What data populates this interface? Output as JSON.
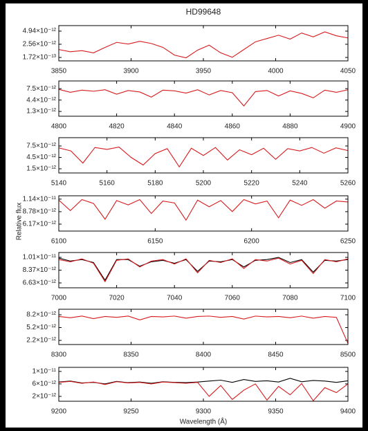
{
  "chart_data": [
    {
      "type": "line",
      "title": "HD99648",
      "x": [
        3850,
        3858,
        3866,
        3874,
        3882,
        3890,
        3898,
        3906,
        3914,
        3922,
        3930,
        3938,
        3946,
        3954,
        3962,
        3970,
        3978,
        3986,
        3994,
        4002,
        4010,
        4018,
        4026,
        4034,
        4042,
        4050
      ],
      "series": [
        {
          "color": "#d7191c",
          "values": [
            1.6e-12,
            1.2e-12,
            1.4e-12,
            1e-12,
            2e-12,
            2.9e-12,
            2.6e-12,
            3.1e-12,
            2.7e-12,
            2e-12,
            6e-13,
            1e-13,
            1.5e-12,
            2.4e-12,
            1e-12,
            2e-13,
            1.6e-12,
            3e-12,
            3.6e-12,
            4.2e-12,
            3.5e-12,
            4.6e-12,
            3.9e-12,
            4.8e-12,
            4.1e-12,
            3.7e-12
          ]
        }
      ],
      "xlim": [
        3850,
        4050
      ],
      "xticks": [
        3850,
        3900,
        3950,
        4000,
        4050
      ],
      "ylim": [
        -4.5e-13,
        5.94e-12
      ],
      "yticks": [
        {
          "value": 1.72e-13,
          "label": "1.72×10⁻¹³"
        },
        {
          "value": 2.56e-12,
          "label": "2.56×10⁻¹²"
        },
        {
          "value": 4.94e-12,
          "label": "4.94×10⁻¹²"
        }
      ]
    },
    {
      "type": "line",
      "x": [
        4800,
        4804,
        4808,
        4812,
        4816,
        4820,
        4824,
        4828,
        4832,
        4836,
        4840,
        4844,
        4848,
        4852,
        4856,
        4860,
        4864,
        4868,
        4872,
        4876,
        4880,
        4884,
        4888,
        4892,
        4896,
        4900
      ],
      "series": [
        {
          "color": "#d7191c",
          "values": [
            7.3e-12,
            6.5e-12,
            7.1e-12,
            6.8e-12,
            7.2e-12,
            6e-12,
            7e-12,
            6.6e-12,
            5.2e-12,
            7.1e-12,
            6.9e-12,
            6.3e-12,
            7.2e-12,
            5.8e-12,
            7e-12,
            6.4e-12,
            2.8e-12,
            6.7e-12,
            7e-12,
            5.5e-12,
            6.9e-12,
            6.2e-12,
            5e-12,
            7.1e-12,
            6.5e-12,
            7.2e-12
          ]
        }
      ],
      "xlim": [
        4800,
        4900
      ],
      "xticks": [
        4800,
        4820,
        4840,
        4860,
        4880,
        4900
      ],
      "ylim": [
        0,
        9.6e-12
      ],
      "yticks": [
        {
          "value": 1.3e-12,
          "label": "1.3×10⁻¹²"
        },
        {
          "value": 4.4e-12,
          "label": "4.4×10⁻¹²"
        },
        {
          "value": 7.5e-12,
          "label": "7.5×10⁻¹²"
        }
      ]
    },
    {
      "type": "line",
      "x": [
        5140,
        5145,
        5150,
        5155,
        5160,
        5165,
        5170,
        5175,
        5180,
        5185,
        5190,
        5195,
        5200,
        5205,
        5210,
        5215,
        5220,
        5225,
        5230,
        5235,
        5240,
        5245,
        5250,
        5255,
        5260
      ],
      "series": [
        {
          "color": "#d7191c",
          "values": [
            7e-12,
            6.2e-12,
            3e-12,
            7.1e-12,
            6.6e-12,
            7.2e-12,
            4.5e-12,
            2.5e-12,
            5.5e-12,
            6.8e-12,
            2e-12,
            6.9e-12,
            5e-12,
            7.1e-12,
            3.8e-12,
            6.5e-12,
            5.2e-12,
            6.9e-12,
            4e-12,
            6.8e-12,
            6.2e-12,
            7.1e-12,
            5.6e-12,
            7e-12,
            6.3e-12
          ]
        }
      ],
      "xlim": [
        5140,
        5260
      ],
      "xticks": [
        5140,
        5160,
        5180,
        5200,
        5220,
        5240,
        5260
      ],
      "ylim": [
        4.1e-13,
        9.68e-12
      ],
      "yticks": [
        {
          "value": 1.5e-12,
          "label": "1.5×10⁻¹²"
        },
        {
          "value": 4.5e-12,
          "label": "4.5×10⁻¹²"
        },
        {
          "value": 7.5e-12,
          "label": "7.5×10⁻¹²"
        }
      ]
    },
    {
      "type": "line",
      "y_label": "Relative flux",
      "x": [
        6100,
        6106,
        6112,
        6118,
        6124,
        6130,
        6136,
        6142,
        6148,
        6154,
        6160,
        6166,
        6172,
        6178,
        6184,
        6190,
        6196,
        6202,
        6208,
        6214,
        6220,
        6226,
        6232,
        6238,
        6244,
        6250
      ],
      "series": [
        {
          "color": "#d7191c",
          "values": [
            1.12e-11,
            9e-12,
            1.13e-11,
            1.05e-11,
            7.2e-12,
            1.11e-11,
            1.02e-11,
            1.13e-11,
            8.4e-12,
            1.1e-11,
            1.06e-11,
            7e-12,
            1.12e-11,
            9.8e-12,
            1.11e-11,
            8.8e-12,
            1.13e-11,
            1.04e-11,
            1.1e-11,
            7.5e-12,
            1.12e-11,
            1.01e-11,
            1.13e-11,
            9.5e-12,
            1.1e-11,
            1.08e-11
          ]
        }
      ],
      "xlim": [
        6100,
        6250
      ],
      "xticks": [
        6100,
        6150,
        6200,
        6250
      ],
      "ylim": [
        4.72e-12,
        1.21e-11
      ],
      "yticks": [
        {
          "value": 6.17e-12,
          "label": "6.17×10⁻¹²"
        },
        {
          "value": 8.78e-12,
          "label": "8.78×10⁻¹²"
        },
        {
          "value": 1.14e-11,
          "label": "1.14×10⁻¹¹"
        }
      ]
    },
    {
      "type": "line",
      "x": [
        7000,
        7004,
        7008,
        7012,
        7016,
        7020,
        7024,
        7028,
        7032,
        7036,
        7040,
        7044,
        7048,
        7052,
        7056,
        7060,
        7064,
        7068,
        7072,
        7076,
        7080,
        7084,
        7088,
        7092,
        7096,
        7100
      ],
      "series": [
        {
          "color": "#000000",
          "values": [
            1e-11,
            9.6e-12,
            9.8e-12,
            9.4e-12,
            7e-12,
            9.8e-12,
            9.8e-12,
            8.9e-12,
            9.5e-12,
            9.7e-12,
            9.3e-12,
            9.8e-12,
            8.2e-12,
            9.6e-12,
            9.5e-12,
            9.8e-12,
            8.8e-12,
            9.7e-12,
            9.8e-12,
            1.01e-11,
            9.4e-12,
            9.8e-12,
            8.1e-12,
            9.7e-12,
            9.6e-12,
            9.8e-12
          ]
        },
        {
          "color": "#d7191c",
          "values": [
            9.8e-12,
            9.5e-12,
            9.9e-12,
            9.3e-12,
            6.8e-12,
            9.7e-12,
            9.9e-12,
            8.8e-12,
            9.6e-12,
            9.8e-12,
            9.2e-12,
            9.9e-12,
            8e-12,
            9.7e-12,
            9.4e-12,
            9.9e-12,
            8.6e-12,
            9.8e-12,
            9.6e-12,
            1e-11,
            9.2e-12,
            9.7e-12,
            7.9e-12,
            9.8e-12,
            9.5e-12,
            9.9e-12
          ]
        }
      ],
      "xlim": [
        7000,
        7100
      ],
      "xticks": [
        7000,
        7020,
        7040,
        7060,
        7080,
        7100
      ],
      "ylim": [
        5.97e-12,
        1.076e-11
      ],
      "yticks": [
        {
          "value": 6.63e-12,
          "label": "6.63×10⁻¹²"
        },
        {
          "value": 8.37e-12,
          "label": "8.37×10⁻¹²"
        },
        {
          "value": 1.01e-11,
          "label": "1.01×10⁻¹¹"
        }
      ]
    },
    {
      "type": "line",
      "x": [
        8300,
        8308,
        8316,
        8324,
        8332,
        8340,
        8348,
        8356,
        8364,
        8372,
        8380,
        8388,
        8396,
        8404,
        8412,
        8420,
        8428,
        8436,
        8444,
        8452,
        8460,
        8468,
        8476,
        8484,
        8492,
        8500
      ],
      "series": [
        {
          "color": "#d7191c",
          "values": [
            7.8e-12,
            7.5e-12,
            7.9e-12,
            7.3e-12,
            7.8e-12,
            7.6e-12,
            7.9e-12,
            7e-12,
            7.8e-12,
            7.7e-12,
            7.9e-12,
            7.4e-12,
            7.8e-12,
            7.9e-12,
            7.6e-12,
            7.8e-12,
            7.2e-12,
            7.9e-12,
            7.7e-12,
            7.8e-12,
            7.5e-12,
            7.9e-12,
            7.4e-12,
            7.8e-12,
            7.6e-12,
            1.5e-12
          ]
        }
      ],
      "xlim": [
        8300,
        8500
      ],
      "xticks": [
        8300,
        8350,
        8400,
        8450,
        8500
      ],
      "ylim": [
        1.23e-12,
        9.5e-12
      ],
      "yticks": [
        {
          "value": 2.2e-12,
          "label": "2.2×10⁻¹²"
        },
        {
          "value": 5.2e-12,
          "label": "5.2×10⁻¹²"
        },
        {
          "value": 8.2e-12,
          "label": "8.2×10⁻¹²"
        }
      ]
    },
    {
      "type": "line",
      "x_label": "Wavelength (Å)",
      "x": [
        9200,
        9208,
        9216,
        9224,
        9232,
        9240,
        9248,
        9256,
        9264,
        9272,
        9280,
        9288,
        9296,
        9304,
        9312,
        9320,
        9328,
        9336,
        9344,
        9352,
        9360,
        9368,
        9376,
        9384,
        9392,
        9400
      ],
      "series": [
        {
          "color": "#000000",
          "values": [
            6.6e-12,
            6.9e-12,
            6.3e-12,
            6.5e-12,
            6e-12,
            6.8e-12,
            6.4e-12,
            6.6e-12,
            6.2e-12,
            6.7e-12,
            6.5e-12,
            6.4e-12,
            6.6e-12,
            6.9e-12,
            7.2e-12,
            6.5e-12,
            7.4e-12,
            6.8e-12,
            7e-12,
            6.6e-12,
            7.8e-12,
            6.7e-12,
            7.1e-12,
            6.9e-12,
            6.5e-12,
            7e-12
          ]
        },
        {
          "color": "#d7191c",
          "values": [
            6.5e-12,
            6.8e-12,
            6.2e-12,
            6.6e-12,
            5.8e-12,
            6.7e-12,
            6.3e-12,
            6.5e-12,
            6e-12,
            6.6e-12,
            6.4e-12,
            6.2e-12,
            6.5e-12,
            2e-12,
            5.5e-12,
            1e-12,
            4e-12,
            6e-12,
            8e-13,
            5.2e-12,
            2.5e-12,
            6.1e-12,
            6e-13,
            4.8e-12,
            3.2e-12,
            6e-12
          ]
        }
      ],
      "xlim": [
        9200,
        9400
      ],
      "xticks": [
        9200,
        9250,
        9300,
        9350,
        9400
      ],
      "ylim": [
        4.4e-13,
        1.13e-11
      ],
      "yticks": [
        {
          "value": 2e-12,
          "label": "2×10⁻¹²"
        },
        {
          "value": 6e-12,
          "label": "6×10⁻¹²"
        },
        {
          "value": 1e-11,
          "label": "1×10⁻¹¹"
        }
      ]
    }
  ]
}
